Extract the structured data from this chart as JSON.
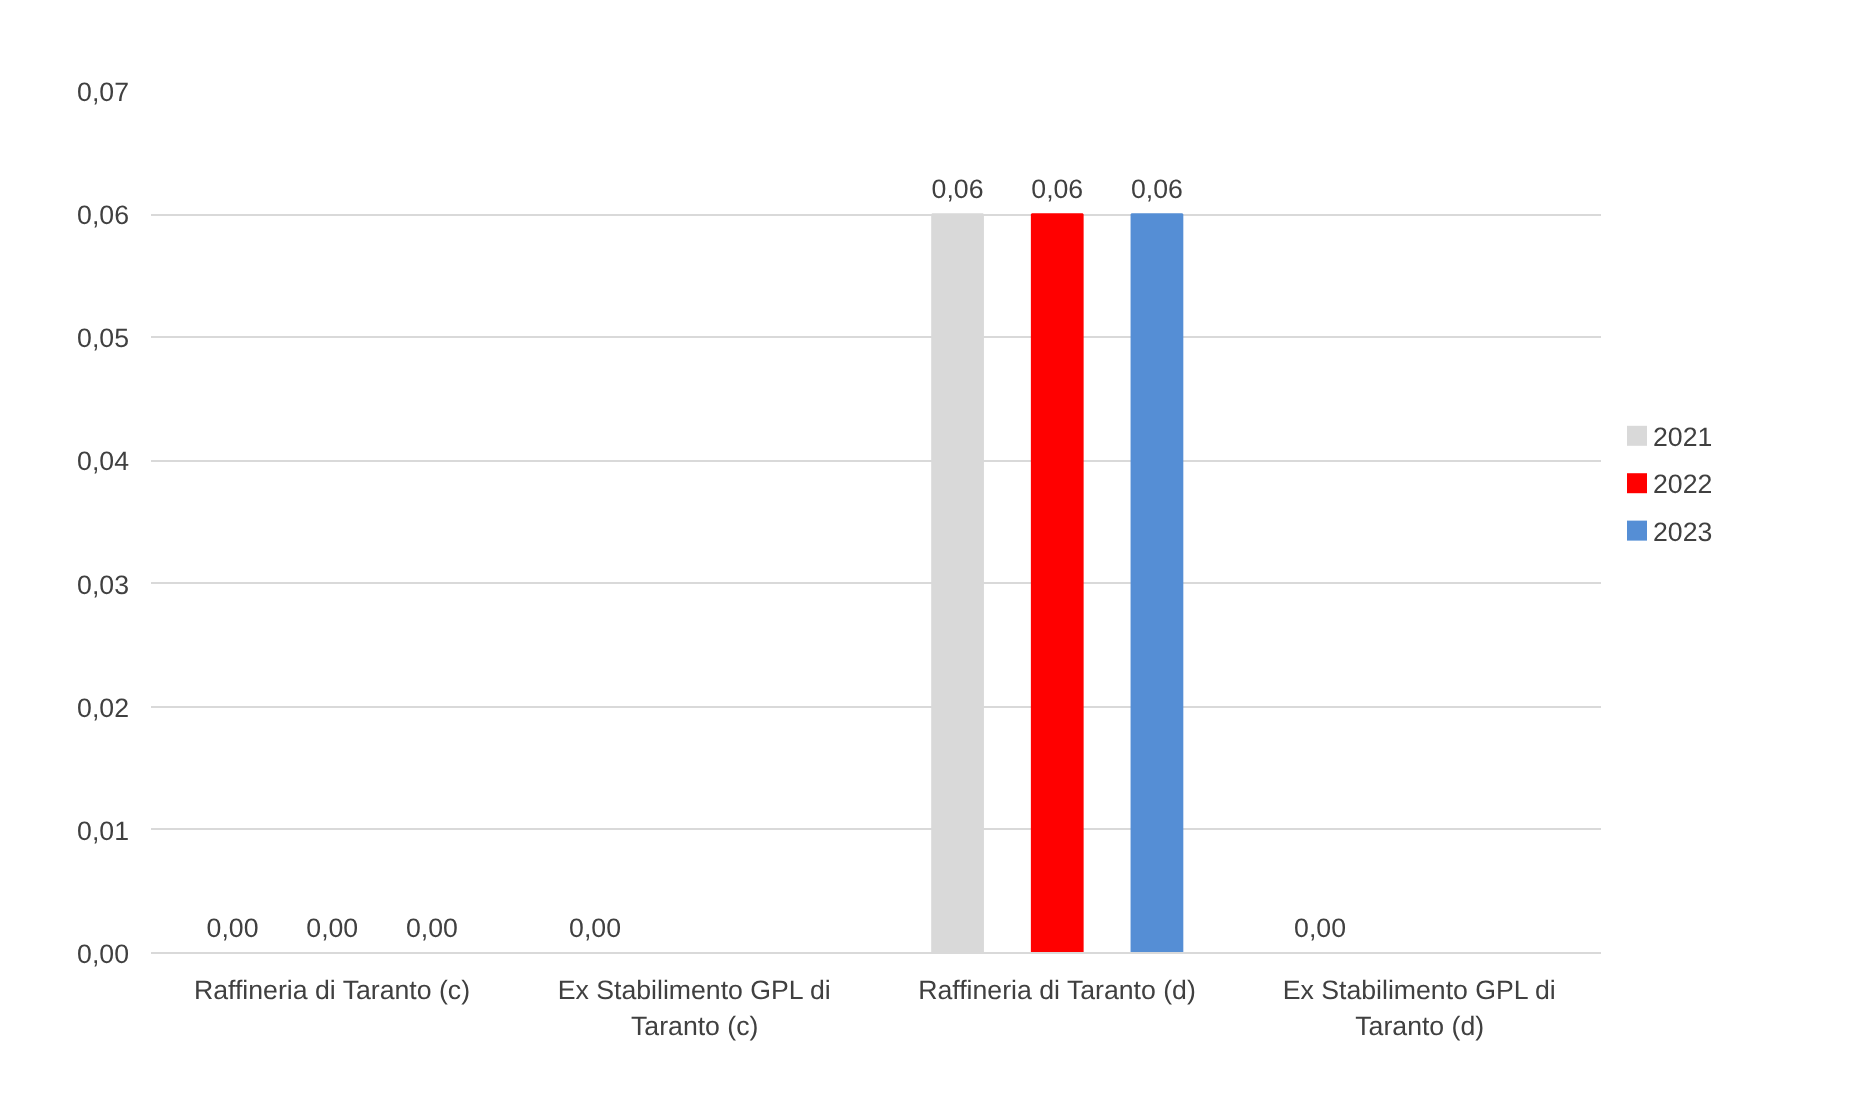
{
  "chart_data": {
    "type": "bar",
    "categories": [
      "Raffineria di Taranto (c)",
      "Ex Stabilimento GPL di Taranto (c)",
      "Raffineria di Taranto (d)",
      "Ex Stabilimento GPL di Taranto (d)"
    ],
    "series": [
      {
        "name": "2021",
        "color": "#d9d9d9",
        "values": [
          0,
          0,
          0.06,
          0
        ],
        "value_labels": [
          "0,00",
          "0,00",
          "0,06",
          "0,00"
        ]
      },
      {
        "name": "2022",
        "color": "#ff0000",
        "values": [
          0,
          null,
          0.06,
          null
        ],
        "value_labels": [
          "0,00",
          null,
          "0,06",
          null
        ]
      },
      {
        "name": "2023",
        "color": "#558ed5",
        "values": [
          0,
          null,
          0.06,
          null
        ],
        "value_labels": [
          "0,00",
          null,
          "0,06",
          null
        ]
      }
    ],
    "ylim": [
      0,
      0.07
    ],
    "yticks": [
      {
        "value": 0,
        "label": "0,00"
      },
      {
        "value": 0.01,
        "label": "0,01"
      },
      {
        "value": 0.02,
        "label": "0,02"
      },
      {
        "value": 0.03,
        "label": "0,03"
      },
      {
        "value": 0.04,
        "label": "0,04"
      },
      {
        "value": 0.05,
        "label": "0,05"
      },
      {
        "value": 0.06,
        "label": "0,06"
      },
      {
        "value": 0.07,
        "label": "0,07"
      }
    ],
    "grid": "y",
    "legend": "right"
  }
}
